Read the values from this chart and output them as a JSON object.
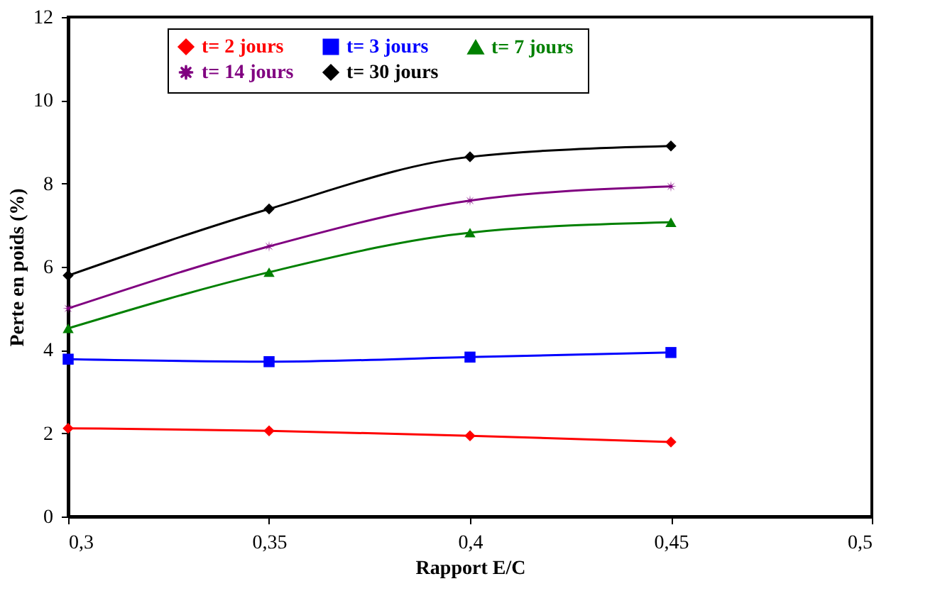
{
  "chart_data": {
    "type": "line",
    "xlabel": "Rapport E/C",
    "ylabel": "Perte en poids (%)",
    "x": [
      0.3,
      0.35,
      0.4,
      0.45
    ],
    "xlim": [
      0.3,
      0.5
    ],
    "xticks": [
      {
        "value": 0.3,
        "label": "0,3"
      },
      {
        "value": 0.35,
        "label": "0,35"
      },
      {
        "value": 0.4,
        "label": "0,4"
      },
      {
        "value": 0.45,
        "label": "0,45"
      },
      {
        "value": 0.5,
        "label": "0,5"
      }
    ],
    "ylim": [
      0,
      12
    ],
    "yticks": [
      0,
      2,
      4,
      6,
      8,
      10,
      12
    ],
    "grid": false,
    "legend": "top",
    "series": [
      {
        "name": "t=  2 jours",
        "color": "#ff0000",
        "marker": "diamond",
        "values": [
          2.12,
          2.06,
          1.94,
          1.79
        ]
      },
      {
        "name": "t=  3 jours",
        "color": "#0000ff",
        "marker": "square",
        "values": [
          3.78,
          3.72,
          3.83,
          3.94
        ]
      },
      {
        "name": "t=  7 jours",
        "color": "#008000",
        "marker": "triangle",
        "values": [
          4.52,
          5.87,
          6.82,
          7.07
        ]
      },
      {
        "name": "t= 14 jours",
        "color": "#800080",
        "marker": "star",
        "values": [
          5.0,
          6.49,
          7.59,
          7.93
        ]
      },
      {
        "name": "t= 30 jours",
        "color": "#000000",
        "marker": "diamond",
        "values": [
          5.79,
          7.39,
          8.64,
          8.9
        ]
      }
    ]
  }
}
